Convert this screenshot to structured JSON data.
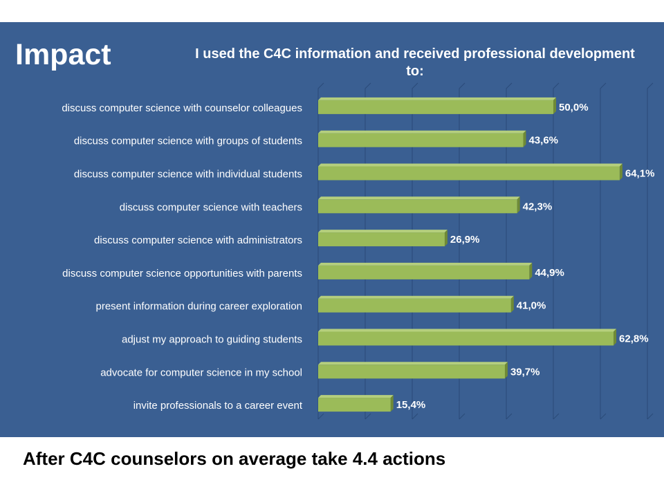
{
  "slide": {
    "heading": "Impact",
    "footer": "After C4C counselors on average take 4.4 actions"
  },
  "colors": {
    "panel": "#3a5f92",
    "bar_front": "#9bbb59",
    "bar_top": "#b5cf7d",
    "bar_side": "#6f8a36",
    "text": "#ffffff"
  },
  "chart_data": {
    "type": "bar",
    "orientation": "horizontal",
    "style": "3d",
    "title": "I used the C4C information and received professional development to:",
    "categories": [
      "discuss computer science with counselor colleagues",
      "discuss computer science with groups of students",
      "discuss computer science with individual students",
      "discuss computer science with teachers",
      "discuss computer science with administrators",
      "discuss computer science opportunities with parents",
      "present information during career exploration",
      "adjust my approach to guiding students",
      "advocate for computer science in my school",
      "invite professionals to a career event"
    ],
    "values": [
      50.0,
      43.6,
      64.1,
      42.3,
      26.9,
      44.9,
      41.0,
      62.8,
      39.7,
      15.4
    ],
    "value_labels": [
      "50,0%",
      "43,6%",
      "64,1%",
      "42,3%",
      "26,9%",
      "44,9%",
      "41,0%",
      "62,8%",
      "39,7%",
      "15,4%"
    ],
    "xlim": [
      0,
      70
    ],
    "grid": true,
    "legend": "none"
  }
}
